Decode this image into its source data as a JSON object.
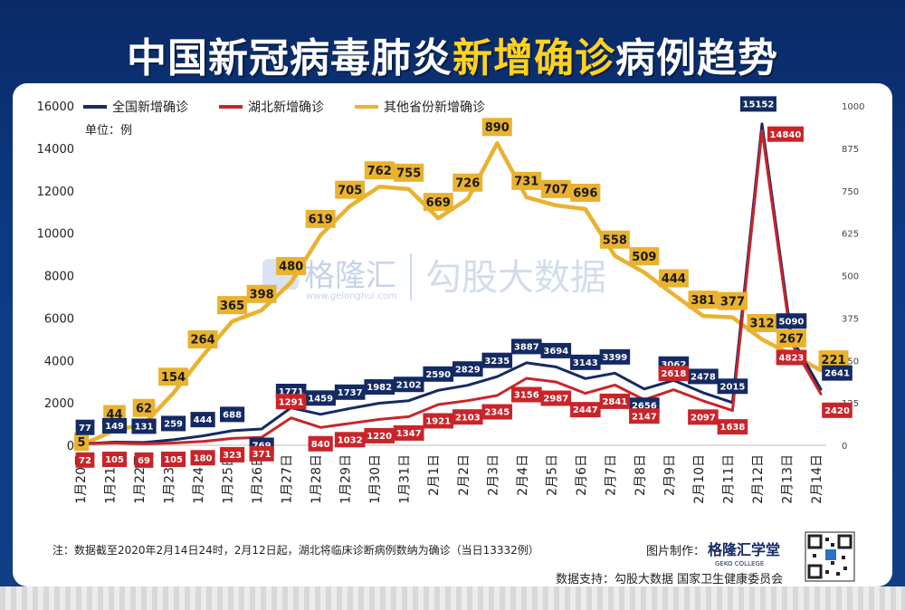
{
  "title": {
    "part1": "中国新冠病毒肺炎",
    "highlight": "新增确诊",
    "part2": "病例趋势"
  },
  "unit_label": "单位：例",
  "note": "注：数据截至2020年2月14日24时，2月12日起，湖北将临床诊断病例数纳为确诊（当日13332例）",
  "credit_label": "图片制作：",
  "credit_brand": "格隆汇学堂",
  "credit_brand_sub": "GEKO COLLEGE",
  "source": "数据支持：勾股大数据  国家卫生健康委员会",
  "watermark_logo": "格隆汇",
  "watermark_url": "www.gelonghui.com",
  "watermark_text": "勾股大数据",
  "colors": {
    "national": "#142a63",
    "hubei": "#c8252a",
    "others": "#e9b22f",
    "title_highlight": "#ffd21f"
  },
  "chart_data": {
    "type": "line",
    "categories": [
      "1月20日",
      "1月21日",
      "1月22日",
      "1月23日",
      "1月24日",
      "1月25日",
      "1月26日",
      "1月27日",
      "1月28日",
      "1月29日",
      "1月30日",
      "1月31日",
      "2月1日",
      "2月2日",
      "2月3日",
      "2月4日",
      "2月5日",
      "2月6日",
      "2月7日",
      "2月8日",
      "2月9日",
      "2月10日",
      "2月11日",
      "2月12日",
      "2月13日",
      "2月14日"
    ],
    "left_axis": {
      "min": 0,
      "max": 16000,
      "ticks": [
        0,
        2000,
        4000,
        6000,
        8000,
        10000,
        12000,
        14000,
        16000
      ]
    },
    "right_axis": {
      "min": 0,
      "max": 1000,
      "ticks": [
        0,
        125,
        250,
        375,
        500,
        625,
        750,
        875,
        1000
      ]
    },
    "legend_position": "top-left",
    "grid": false,
    "series": [
      {
        "name": "全国新增确诊",
        "axis": "left",
        "values": [
          77,
          149,
          131,
          259,
          444,
          688,
          769,
          1771,
          1459,
          1737,
          1982,
          2102,
          2590,
          2829,
          3235,
          3887,
          3694,
          3143,
          3399,
          2656,
          3062,
          2478,
          2015,
          15152,
          5090,
          2641
        ]
      },
      {
        "name": "湖北新增确诊",
        "axis": "left",
        "values": [
          72,
          105,
          69,
          105,
          180,
          323,
          371,
          1291,
          840,
          1032,
          1220,
          1347,
          1921,
          2103,
          2345,
          3156,
          2987,
          2447,
          2841,
          2147,
          2618,
          2097,
          1638,
          14840,
          4823,
          2420
        ]
      },
      {
        "name": "其他省份新增确诊",
        "axis": "right",
        "values": [
          5,
          44,
          62,
          154,
          264,
          365,
          398,
          480,
          619,
          705,
          762,
          755,
          669,
          726,
          890,
          731,
          707,
          696,
          558,
          509,
          444,
          381,
          377,
          312,
          267,
          221
        ]
      }
    ]
  }
}
